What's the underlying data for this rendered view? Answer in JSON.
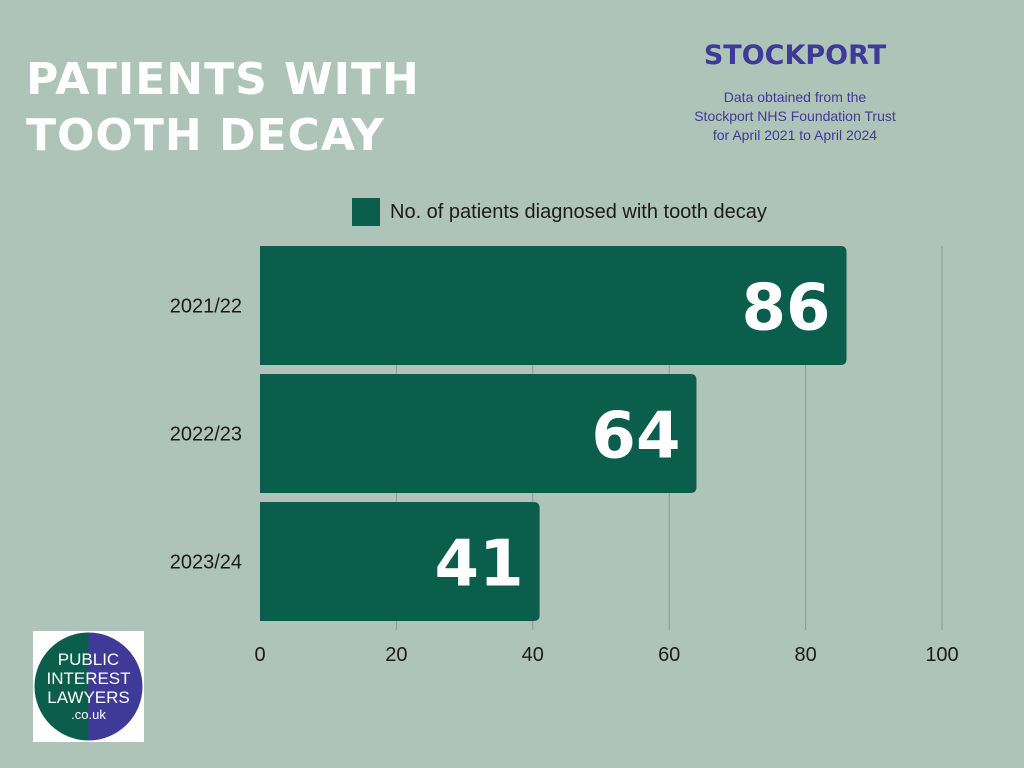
{
  "heading": {
    "line1": "PATIENTS WITH",
    "line2": "TOOTH DECAY"
  },
  "location": "STOCKPORT",
  "source": {
    "line1": "Data obtained from the",
    "line2": "Stockport NHS Foundation Trust",
    "line3": "for April 2021 to April 2024"
  },
  "logo": {
    "line1": "PUBLIC",
    "line2": "INTEREST",
    "line3": "LAWYERS",
    "line4": ".co.uk"
  },
  "colors": {
    "background": "#afc4b8",
    "bar": "#0b5e4c",
    "accent": "#3f3a97",
    "title": "#ffffff"
  },
  "chart_data": {
    "type": "bar",
    "orientation": "horizontal",
    "categories": [
      "2021/22",
      "2022/23",
      "2023/24"
    ],
    "series": [
      {
        "name": "No. of patients diagnosed with tooth decay",
        "values": [
          86,
          64,
          41
        ]
      }
    ],
    "xlim": [
      0,
      100
    ],
    "xticks": [
      0,
      20,
      40,
      60,
      80,
      100
    ],
    "grid": true,
    "legend": "top",
    "data_labels": true
  }
}
